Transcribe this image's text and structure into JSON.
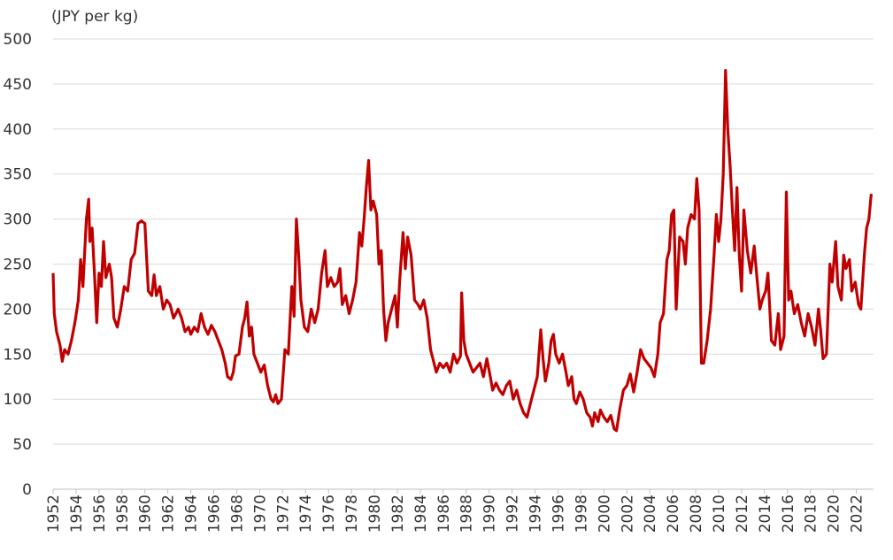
{
  "chart_data": {
    "type": "line",
    "y_label": "(JPY per kg)",
    "color": "#c00000",
    "grid": true,
    "xlim": [
      1952,
      2023.5
    ],
    "ylim": [
      0,
      500
    ],
    "yticks": [
      0,
      50,
      100,
      150,
      200,
      250,
      300,
      350,
      400,
      450,
      500
    ],
    "xticks": [
      1952,
      1954,
      1956,
      1958,
      1960,
      1962,
      1964,
      1966,
      1968,
      1970,
      1972,
      1974,
      1976,
      1978,
      1980,
      1982,
      1984,
      1986,
      1988,
      1990,
      1992,
      1994,
      1996,
      1998,
      2000,
      2002,
      2004,
      2006,
      2008,
      2010,
      2012,
      2014,
      2016,
      2018,
      2020,
      2022
    ],
    "x": [
      1952.0,
      1952.1,
      1952.3,
      1952.6,
      1952.8,
      1953.0,
      1953.3,
      1953.6,
      1953.9,
      1954.2,
      1954.4,
      1954.6,
      1954.9,
      1955.1,
      1955.2,
      1955.4,
      1955.6,
      1955.8,
      1956.0,
      1956.2,
      1956.4,
      1956.6,
      1956.9,
      1957.1,
      1957.3,
      1957.6,
      1957.9,
      1958.2,
      1958.5,
      1958.8,
      1959.1,
      1959.4,
      1959.7,
      1960.0,
      1960.3,
      1960.6,
      1960.8,
      1961.0,
      1961.3,
      1961.6,
      1961.9,
      1962.2,
      1962.5,
      1962.9,
      1963.2,
      1963.5,
      1963.8,
      1964.0,
      1964.3,
      1964.6,
      1964.9,
      1965.2,
      1965.5,
      1965.8,
      1966.1,
      1966.4,
      1966.7,
      1967.0,
      1967.2,
      1967.5,
      1967.7,
      1967.9,
      1968.2,
      1968.5,
      1968.7,
      1968.9,
      1969.1,
      1969.3,
      1969.5,
      1969.8,
      1970.1,
      1970.4,
      1970.7,
      1971.0,
      1971.2,
      1971.4,
      1971.6,
      1971.9,
      1972.2,
      1972.5,
      1972.8,
      1973.0,
      1973.2,
      1973.4,
      1973.6,
      1973.9,
      1974.2,
      1974.5,
      1974.8,
      1975.1,
      1975.4,
      1975.7,
      1975.9,
      1976.2,
      1976.5,
      1976.8,
      1977.0,
      1977.2,
      1977.5,
      1977.8,
      1978.1,
      1978.4,
      1978.7,
      1978.9,
      1979.1,
      1979.3,
      1979.5,
      1979.7,
      1979.9,
      1980.2,
      1980.4,
      1980.6,
      1980.8,
      1981.0,
      1981.2,
      1981.5,
      1981.8,
      1982.0,
      1982.2,
      1982.5,
      1982.7,
      1982.9,
      1983.2,
      1983.5,
      1983.8,
      1984.0,
      1984.3,
      1984.6,
      1984.9,
      1985.2,
      1985.4,
      1985.7,
      1986.0,
      1986.3,
      1986.6,
      1986.9,
      1987.2,
      1987.5,
      1987.6,
      1987.8,
      1988.0,
      1988.3,
      1988.6,
      1988.9,
      1989.2,
      1989.5,
      1989.8,
      1990.1,
      1990.3,
      1990.6,
      1990.9,
      1991.2,
      1991.5,
      1991.8,
      1992.1,
      1992.4,
      1992.7,
      1993.0,
      1993.3,
      1993.6,
      1993.9,
      1994.2,
      1994.5,
      1994.7,
      1994.9,
      1995.2,
      1995.4,
      1995.6,
      1995.8,
      1996.1,
      1996.4,
      1996.7,
      1996.9,
      1997.2,
      1997.4,
      1997.6,
      1997.9,
      1998.2,
      1998.5,
      1998.8,
      1999.0,
      1999.2,
      1999.5,
      1999.7,
      2000.0,
      2000.3,
      2000.6,
      2000.9,
      2001.1,
      2001.4,
      2001.7,
      2002.0,
      2002.3,
      2002.6,
      2002.9,
      2003.2,
      2003.5,
      2003.8,
      2004.1,
      2004.4,
      2004.7,
      2004.9,
      2005.2,
      2005.5,
      2005.7,
      2005.9,
      2006.1,
      2006.3,
      2006.6,
      2006.9,
      2007.1,
      2007.3,
      2007.6,
      2007.9,
      2008.1,
      2008.3,
      2008.5,
      2008.7,
      2009.0,
      2009.3,
      2009.6,
      2009.8,
      2010.0,
      2010.2,
      2010.4,
      2010.6,
      2010.8,
      2011.0,
      2011.2,
      2011.4,
      2011.6,
      2011.8,
      2012.0,
      2012.2,
      2012.5,
      2012.8,
      2013.1,
      2013.3,
      2013.6,
      2013.8,
      2014.1,
      2014.3,
      2014.6,
      2014.9,
      2015.2,
      2015.4,
      2015.7,
      2015.9,
      2016.1,
      2016.3,
      2016.6,
      2016.9,
      2017.2,
      2017.5,
      2017.8,
      2018.1,
      2018.4,
      2018.7,
      2018.9,
      2019.1,
      2019.4,
      2019.7,
      2019.9,
      2020.2,
      2020.4,
      2020.7,
      2020.9,
      2021.1,
      2021.4,
      2021.6,
      2021.9,
      2022.2,
      2022.4,
      2022.7,
      2022.9,
      2023.1,
      2023.3
    ],
    "values": [
      240,
      195,
      175,
      160,
      142,
      155,
      150,
      165,
      185,
      210,
      255,
      225,
      300,
      322,
      275,
      290,
      240,
      185,
      240,
      225,
      275,
      235,
      250,
      235,
      190,
      180,
      200,
      225,
      220,
      255,
      262,
      295,
      298,
      295,
      220,
      215,
      238,
      215,
      225,
      200,
      210,
      205,
      190,
      200,
      190,
      175,
      180,
      172,
      180,
      175,
      195,
      180,
      172,
      182,
      175,
      165,
      155,
      140,
      125,
      122,
      130,
      148,
      150,
      180,
      190,
      208,
      170,
      180,
      150,
      140,
      130,
      138,
      115,
      100,
      97,
      105,
      95,
      100,
      155,
      150,
      225,
      192,
      300,
      260,
      210,
      180,
      175,
      200,
      185,
      200,
      240,
      265,
      225,
      235,
      225,
      230,
      245,
      205,
      215,
      195,
      210,
      230,
      285,
      270,
      300,
      335,
      365,
      310,
      320,
      305,
      250,
      265,
      200,
      165,
      185,
      200,
      215,
      180,
      230,
      285,
      245,
      280,
      260,
      210,
      205,
      200,
      210,
      190,
      155,
      140,
      130,
      140,
      135,
      140,
      130,
      150,
      140,
      148,
      218,
      165,
      150,
      140,
      130,
      135,
      140,
      125,
      145,
      125,
      110,
      118,
      110,
      105,
      115,
      120,
      100,
      110,
      95,
      85,
      80,
      95,
      110,
      125,
      177,
      145,
      120,
      140,
      165,
      172,
      150,
      140,
      150,
      130,
      115,
      125,
      100,
      95,
      108,
      100,
      85,
      80,
      70,
      85,
      75,
      88,
      80,
      75,
      82,
      67,
      65,
      90,
      110,
      115,
      128,
      108,
      130,
      155,
      145,
      140,
      135,
      125,
      150,
      185,
      195,
      255,
      265,
      305,
      310,
      200,
      280,
      275,
      250,
      290,
      305,
      300,
      345,
      310,
      140,
      140,
      165,
      200,
      260,
      305,
      275,
      300,
      350,
      465,
      400,
      360,
      310,
      265,
      335,
      260,
      220,
      310,
      265,
      240,
      270,
      240,
      200,
      210,
      220,
      240,
      165,
      160,
      195,
      155,
      170,
      330,
      210,
      220,
      195,
      205,
      185,
      170,
      195,
      180,
      160,
      200,
      175,
      145,
      150,
      250,
      230,
      275,
      225,
      210,
      260,
      245,
      255,
      220,
      230,
      205,
      200,
      260,
      290,
      300,
      328
    ]
  }
}
